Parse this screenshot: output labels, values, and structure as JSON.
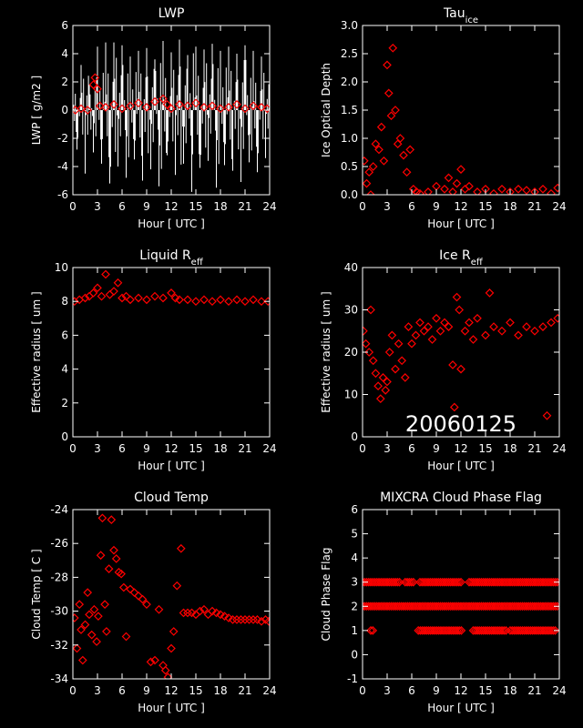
{
  "chart_data": [
    {
      "type": "scatter",
      "title": "LWP",
      "xlabel": "Hour [ UTC ]",
      "ylabel": "LWP [ g/m2 ]",
      "xlim": [
        0,
        24
      ],
      "ylim": [
        -6,
        6
      ],
      "xticks": [
        0,
        3,
        6,
        9,
        12,
        15,
        18,
        21,
        24
      ],
      "yticks": [
        -6,
        -4,
        -2,
        0,
        2,
        4,
        6
      ],
      "series": [
        {
          "style": "white-noise-line",
          "color": "#ffffff",
          "x": [
            0,
            0.5,
            1,
            1.5,
            2,
            2.5,
            3,
            3.5,
            4,
            4.5,
            5,
            5.5,
            6,
            6.5,
            7,
            7.5,
            8,
            8.5,
            9,
            9.5,
            10,
            10.5,
            11,
            11.5,
            12,
            12.5,
            13,
            13.5,
            14,
            14.5,
            15,
            15.5,
            16,
            16.5,
            17,
            17.5,
            18,
            18.5,
            19,
            19.5,
            20,
            20.5,
            21,
            21.5,
            22,
            22.5,
            23,
            23.5,
            24
          ],
          "y": [
            2.5,
            -2.8,
            3.2,
            -4.5,
            1.8,
            -3.0,
            4.5,
            -3.8,
            4.8,
            -5.2,
            4.8,
            -4.0,
            4.6,
            -4.8,
            3.8,
            -3.5,
            4.2,
            -5.0,
            4.4,
            -4.2,
            3.6,
            -5.4,
            4.9,
            -3.2,
            4.1,
            -4.6,
            5.0,
            -3.8,
            3.9,
            -5.8,
            4.5,
            -4.1,
            4.3,
            -3.6,
            4.7,
            -5.5,
            4.2,
            -3.9,
            4.5,
            -4.3,
            4.0,
            -5.1,
            4.6,
            -3.7,
            4.2,
            -4.4,
            3.8,
            -3.4,
            1.5
          ]
        },
        {
          "style": "red-diamonds",
          "color": "#ff0000",
          "x": [
            0.3,
            1,
            1.8,
            2.5,
            2.7,
            3,
            3.3,
            4,
            5,
            6,
            7,
            8,
            9,
            10,
            11,
            11.5,
            12,
            13,
            14,
            15,
            16,
            17,
            18,
            19,
            20,
            21,
            22,
            23,
            23.7
          ],
          "y": [
            0,
            0.1,
            0,
            1.8,
            2.3,
            1.5,
            0.3,
            0.2,
            0.4,
            0.1,
            0.3,
            0.5,
            0.2,
            0.6,
            0.8,
            0.4,
            0.1,
            0.4,
            0.3,
            0.5,
            0.2,
            0.3,
            0.1,
            0.2,
            0.4,
            0.1,
            0.3,
            0.2,
            0.1
          ]
        }
      ]
    },
    {
      "type": "scatter",
      "title": "Tau",
      "title_sub": "ice",
      "xlabel": "Hour [ UTC ]",
      "ylabel": "Ice Optical Depth",
      "xlim": [
        0,
        24
      ],
      "ylim": [
        0,
        3
      ],
      "xticks": [
        0,
        3,
        6,
        9,
        12,
        15,
        18,
        21,
        24
      ],
      "yticks": [
        0.0,
        0.5,
        1.0,
        1.5,
        2.0,
        2.5,
        3.0
      ],
      "series": [
        {
          "style": "red-diamonds",
          "color": "#ff0000",
          "x": [
            0.2,
            0.5,
            0.8,
            1.0,
            1.3,
            1.6,
            2.0,
            2.3,
            2.6,
            3.0,
            3.2,
            3.5,
            3.7,
            4.0,
            4.3,
            4.6,
            5.0,
            5.4,
            5.8,
            6.2,
            6.6,
            7.0,
            8,
            9,
            10,
            10.5,
            11,
            11.5,
            12,
            12.5,
            13,
            14,
            15,
            16,
            17,
            18,
            19,
            20,
            21,
            22,
            23,
            23.8
          ],
          "y": [
            0.6,
            0.2,
            0.4,
            0.0,
            0.5,
            0.9,
            0.8,
            1.2,
            0.6,
            2.3,
            1.8,
            1.4,
            2.6,
            1.5,
            0.9,
            1.0,
            0.7,
            0.4,
            0.8,
            0.1,
            0.05,
            0.02,
            0.05,
            0.15,
            0.1,
            0.3,
            0.05,
            0.2,
            0.45,
            0.1,
            0.15,
            0.05,
            0.1,
            0.02,
            0.1,
            0.05,
            0.1,
            0.08,
            0.05,
            0.1,
            0.02,
            0.12
          ]
        }
      ]
    },
    {
      "type": "scatter",
      "title": "Liquid R",
      "title_sub": "eff",
      "xlabel": "Hour [ UTC ]",
      "ylabel": "Effective radius [ um ]",
      "xlim": [
        0,
        24
      ],
      "ylim": [
        0,
        10
      ],
      "xticks": [
        0,
        3,
        6,
        9,
        12,
        15,
        18,
        21,
        24
      ],
      "yticks": [
        0,
        2,
        4,
        6,
        8,
        10
      ],
      "series": [
        {
          "style": "red-diamonds",
          "color": "#ff0000",
          "x": [
            0.2,
            0.8,
            1.5,
            2,
            2.5,
            3,
            3.5,
            4,
            4.5,
            5,
            5.5,
            6,
            6.5,
            7,
            8,
            9,
            10,
            11,
            12,
            12.5,
            13,
            14,
            15,
            16,
            17,
            18,
            19,
            20,
            21,
            22,
            23,
            23.8
          ],
          "y": [
            8.0,
            8.1,
            8.2,
            8.3,
            8.5,
            8.8,
            8.3,
            9.6,
            8.4,
            8.6,
            9.1,
            8.2,
            8.3,
            8.1,
            8.2,
            8.1,
            8.3,
            8.2,
            8.5,
            8.2,
            8.1,
            8.1,
            8.0,
            8.1,
            8.0,
            8.1,
            8.0,
            8.1,
            8.0,
            8.1,
            8.0,
            8.0
          ]
        }
      ]
    },
    {
      "type": "scatter",
      "title": "Ice R",
      "title_sub": "eff",
      "xlabel": "Hour [ UTC ]",
      "ylabel": "Effective radius [ um ]",
      "xlim": [
        0,
        24
      ],
      "ylim": [
        0,
        40
      ],
      "xticks": [
        0,
        3,
        6,
        9,
        12,
        15,
        18,
        21,
        24
      ],
      "yticks": [
        0,
        10,
        20,
        30,
        40
      ],
      "annotation": "20060125",
      "series": [
        {
          "style": "red-diamonds",
          "color": "#ff0000",
          "x": [
            0.1,
            0.4,
            0.8,
            1.0,
            1.3,
            1.6,
            1.9,
            2.2,
            2.5,
            2.8,
            3.0,
            3.3,
            3.6,
            4.0,
            4.4,
            4.8,
            5.2,
            5.6,
            6.0,
            6.5,
            7,
            7.5,
            8,
            8.5,
            9,
            9.5,
            10,
            10.5,
            11,
            11.2,
            11.5,
            11.8,
            12,
            12.5,
            13,
            13.5,
            14,
            15,
            15.5,
            16,
            17,
            18,
            19,
            20,
            21,
            22,
            22.5,
            23,
            23.8
          ],
          "y": [
            25,
            22,
            20,
            30,
            18,
            15,
            12,
            9,
            14,
            11,
            13,
            20,
            24,
            16,
            22,
            18,
            14,
            26,
            22,
            24,
            27,
            25,
            26,
            23,
            28,
            25,
            27,
            26,
            17,
            7,
            33,
            30,
            16,
            25,
            27,
            23,
            28,
            24,
            34,
            26,
            25,
            27,
            24,
            26,
            25,
            26,
            5,
            27,
            28
          ]
        }
      ]
    },
    {
      "type": "scatter",
      "title": "Cloud Temp",
      "xlabel": "Hour [ UTC ]",
      "ylabel": "Cloud Temp [ C ]",
      "xlim": [
        0,
        24
      ],
      "ylim": [
        -34,
        -24
      ],
      "xticks": [
        0,
        3,
        6,
        9,
        12,
        15,
        18,
        21,
        24
      ],
      "yticks": [
        -34,
        -32,
        -30,
        -28,
        -26,
        -24
      ],
      "series": [
        {
          "style": "red-diamonds",
          "color": "#ff0000",
          "x": [
            0.2,
            0.5,
            0.8,
            1.0,
            1.2,
            1.5,
            1.8,
            2.0,
            2.3,
            2.6,
            2.9,
            3.1,
            3.4,
            3.6,
            3.9,
            4.1,
            4.4,
            4.7,
            5.0,
            5.3,
            5.6,
            5.9,
            6.2,
            6.5,
            7,
            7.5,
            8,
            8.5,
            9,
            9.5,
            10,
            10.5,
            11,
            11.3,
            11.6,
            12,
            12.3,
            12.7,
            13.2,
            13.5,
            14,
            14.5,
            15,
            15.5,
            16,
            16.5,
            17,
            17.5,
            18,
            18.5,
            19,
            19.5,
            20,
            20.5,
            21,
            21.5,
            22,
            22.5,
            23,
            23.5,
            23.9
          ],
          "y": [
            -30.4,
            -32.2,
            -29.6,
            -31.1,
            -32.9,
            -30.8,
            -28.9,
            -30.2,
            -31.4,
            -29.9,
            -31.8,
            -30.3,
            -26.7,
            -24.5,
            -29.6,
            -31.2,
            -27.5,
            -24.6,
            -26.4,
            -26.9,
            -27.7,
            -27.8,
            -28.6,
            -31.5,
            -28.7,
            -28.9,
            -29.1,
            -29.3,
            -29.6,
            -33.0,
            -32.9,
            -29.9,
            -33.2,
            -33.5,
            -33.9,
            -32.2,
            -31.2,
            -28.5,
            -26.3,
            -30.1,
            -30.1,
            -30.1,
            -30.2,
            -30.0,
            -29.9,
            -30.2,
            -30.0,
            -30.1,
            -30.2,
            -30.3,
            -30.4,
            -30.5,
            -30.5,
            -30.5,
            -30.5,
            -30.5,
            -30.5,
            -30.5,
            -30.6,
            -30.5,
            -30.6
          ]
        }
      ]
    },
    {
      "type": "scatter",
      "title": "MIXCRA Cloud Phase Flag",
      "xlabel": "Hour [ UTC ]",
      "ylabel": "Cloud Phase Flag",
      "xlim": [
        0,
        24
      ],
      "ylim": [
        -1,
        6
      ],
      "xticks": [
        0,
        3,
        6,
        9,
        12,
        15,
        18,
        21,
        24
      ],
      "yticks": [
        -1,
        0,
        1,
        2,
        3,
        4,
        5,
        6
      ],
      "series": [
        {
          "style": "red-diamond-rows",
          "color": "#ff0000",
          "rows": [
            {
              "y": 3,
              "x_ranges": [
                [
                  0,
                  4.5
                ],
                [
                  5.2,
                  6.2
                ],
                [
                  7,
                  12.2
                ],
                [
                  13,
                  23.9
                ]
              ]
            },
            {
              "y": 2,
              "x_ranges": [
                [
                  0,
                  23.9
                ]
              ]
            },
            {
              "y": 1,
              "x_ranges": [
                [
                  1,
                  1.3
                ],
                [
                  6.8,
                  12.2
                ],
                [
                  13.5,
                  17.5
                ],
                [
                  18,
                  23.6
                ]
              ]
            }
          ]
        }
      ]
    }
  ]
}
